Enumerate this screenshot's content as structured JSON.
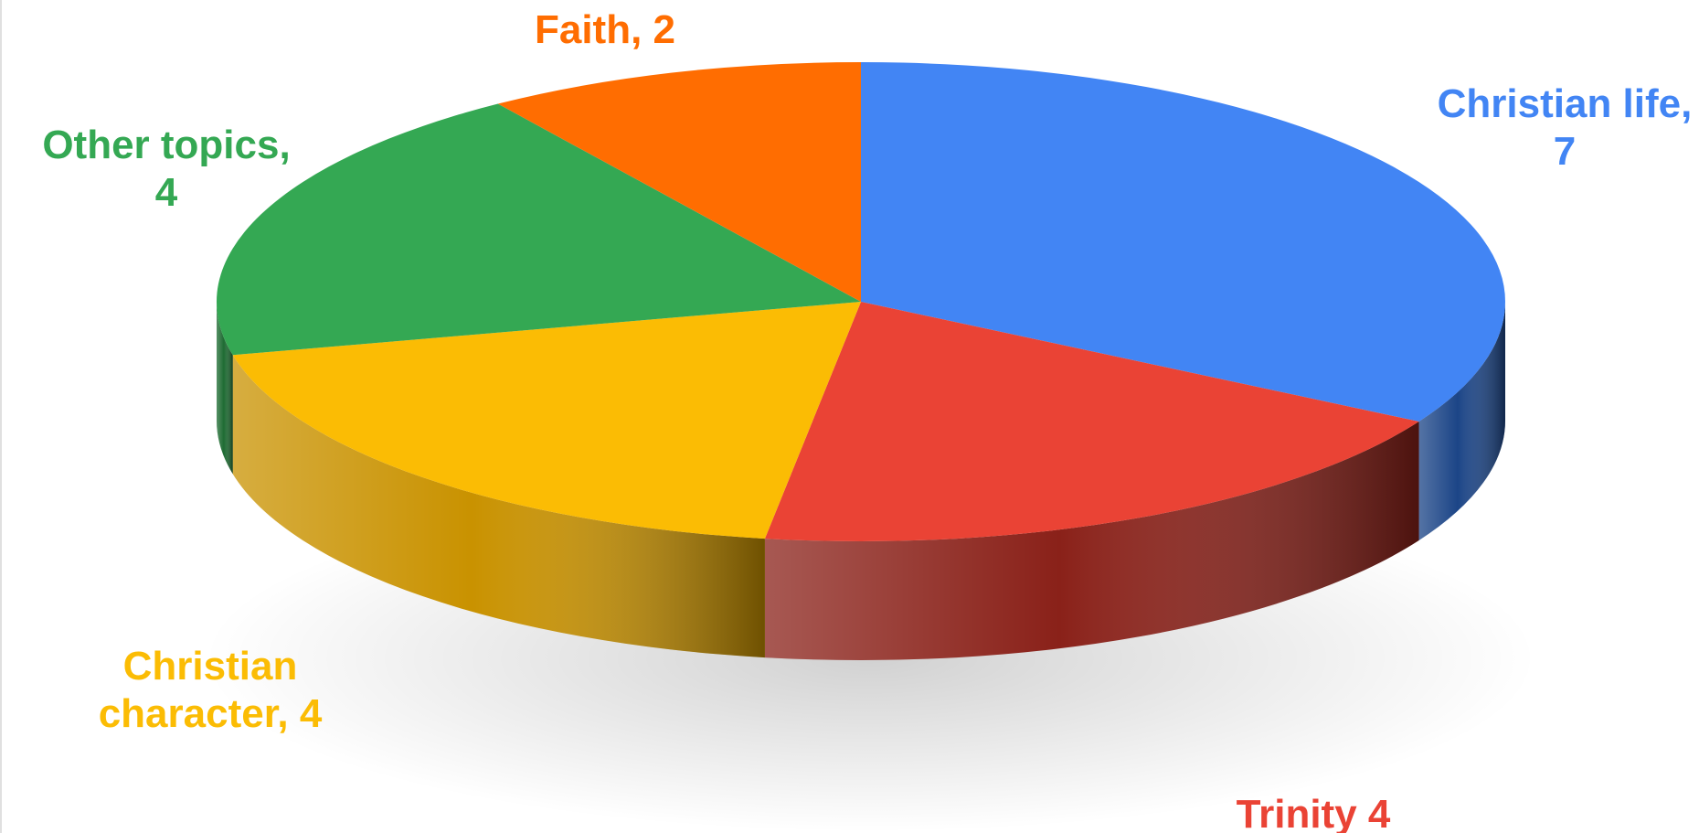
{
  "chart_data": {
    "type": "pie",
    "style": "3d",
    "total": 21,
    "slices": [
      {
        "name": "Christian life",
        "value": 7,
        "label_lines": [
          "Christian life,",
          "7"
        ],
        "color": "#4285F4",
        "side_color": "#1c4587"
      },
      {
        "name": "Trinity",
        "value": 4,
        "label_lines": [
          "Trinity 4"
        ],
        "color": "#EA4335",
        "side_color": "#8a2119"
      },
      {
        "name": "Christian character",
        "value": 4,
        "label_lines": [
          "Christian",
          "character, 4"
        ],
        "color": "#FBBC04",
        "side_color": "#c99200"
      },
      {
        "name": "Other topics",
        "value": 4,
        "label_lines": [
          "Other topics,",
          "4"
        ],
        "color": "#34A853",
        "side_color": "#1e6b32"
      },
      {
        "name": "Faith",
        "value": 2,
        "label_lines": [
          "Faith, 2"
        ],
        "color": "#FF6D01",
        "side_color": "#a84500"
      }
    ]
  }
}
